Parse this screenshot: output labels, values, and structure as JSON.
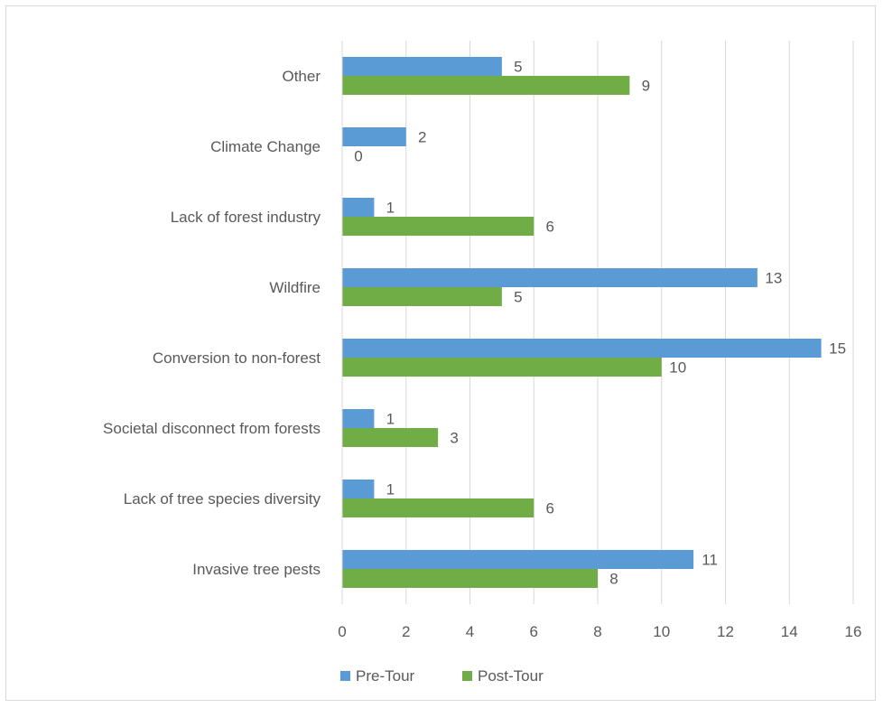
{
  "chart_data": {
    "type": "bar",
    "orientation": "horizontal",
    "categories": [
      "Other",
      "Climate Change",
      "Lack of forest industry",
      "Wildfire",
      "Conversion to non-forest",
      "Societal disconnect from forests",
      "Lack of tree species diversity",
      "Invasive tree pests"
    ],
    "series": [
      {
        "name": "Pre-Tour",
        "color": "#5b9bd5",
        "values": [
          5,
          2,
          1,
          13,
          15,
          1,
          1,
          11
        ]
      },
      {
        "name": "Post-Tour",
        "color": "#70ad47",
        "values": [
          9,
          0,
          6,
          5,
          10,
          3,
          6,
          8
        ]
      }
    ],
    "xlim": [
      0,
      16
    ],
    "xticks": [
      0,
      2,
      4,
      6,
      8,
      10,
      12,
      14,
      16
    ],
    "grid": true,
    "data_labels": true,
    "legend_position": "bottom",
    "title": "",
    "xlabel": "",
    "ylabel": ""
  }
}
